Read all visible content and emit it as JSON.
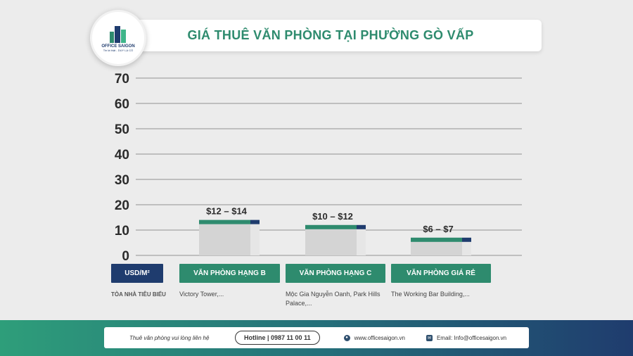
{
  "brand": {
    "logo_name": "OFFICE SAIGON",
    "logo_tagline": "Tin là thật - DUY LẠ CÓ"
  },
  "chart_data": {
    "type": "bar",
    "title": "GIÁ THUÊ VĂN PHÒNG TẠI PHƯỜNG GÒ VẤP",
    "ylabel": "USD/M²",
    "ylim": [
      0,
      70
    ],
    "yticks": [
      0,
      10,
      20,
      30,
      40,
      50,
      60,
      70
    ],
    "grid": true,
    "categories": [
      "VĂN PHÒNG HẠNG B",
      "VĂN PHÒNG HẠNG C",
      "VĂN PHÒNG GIÁ RẺ"
    ],
    "ranges": [
      [
        12,
        14
      ],
      [
        10,
        12
      ],
      [
        6,
        7
      ]
    ],
    "value_labels": [
      "$12 – $14",
      "$10 – $12",
      "$6 – $7"
    ],
    "row_label": "TÒA NHÀ TIÊU BIỂU",
    "examples": [
      "Victory Tower,...",
      "Mộc Gia Nguyễn Oanh, Park Hills Palace,...",
      "The Working Bar Building,..."
    ],
    "colors": {
      "base": "#d4d4d4",
      "base_side": "#e6e6e6",
      "top": "#2e8b6e",
      "top_side": "#1f3c6e",
      "grid": "#b0b0b0",
      "axis_text": "#2b2b2b"
    }
  },
  "footer": {
    "contact_text": "Thuê văn phòng vui lòng liên hệ",
    "hotline": "Hotline | 0987 11 00 11",
    "website": "www.officesaigon.vn",
    "email": "Email: Info@officesaigon.vn"
  }
}
